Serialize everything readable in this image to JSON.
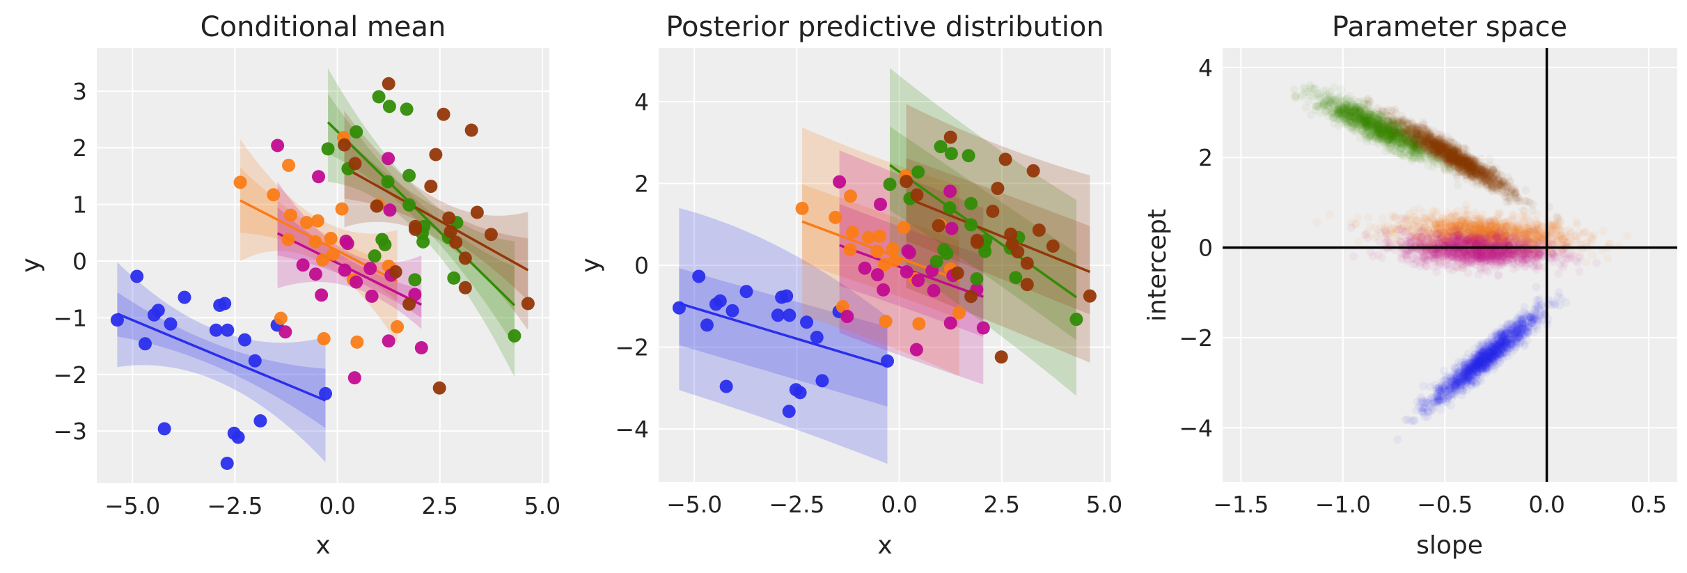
{
  "colors": {
    "blue": "#2a2eec",
    "orange": "#fa7c17",
    "magenta": "#c10c90",
    "green": "#328c06",
    "brown": "#933708",
    "background": "#eeeeee",
    "grid": "#ffffff"
  },
  "chart_data": [
    {
      "type": "line",
      "title": "Conditional mean",
      "xlabel": "x",
      "ylabel": "y",
      "xlim": [
        -5.87,
        5.17
      ],
      "ylim": [
        -3.92,
        3.76
      ],
      "grid": true,
      "xticks": [
        -5,
        -2.5,
        0,
        2.5,
        5
      ],
      "xtick_labels": [
        "−5.0",
        "−2.5",
        "0.0",
        "2.5",
        "5.0"
      ],
      "yticks": [
        -3,
        -2,
        -1,
        0,
        1,
        2,
        3
      ],
      "ytick_labels": [
        "−3",
        "−2",
        "−1",
        "0",
        "1",
        "2",
        "3"
      ],
      "series": [
        {
          "color": "blue",
          "line": {
            "x": [
              -5.37,
              -0.29
            ],
            "y": [
              -0.93,
              -2.46
            ]
          },
          "hdi_outer": {
            "x": [
              -5.37,
              -2.83,
              -0.29
            ],
            "lower": [
              -1.87,
              -2.15,
              -3.55
            ],
            "upper": [
              -0.02,
              -1.25,
              -1.34
            ]
          },
          "hdi_inner": {
            "x": [
              -5.37,
              -2.83,
              -0.29
            ],
            "lower": [
              -1.33,
              -1.9,
              -2.95
            ],
            "upper": [
              -0.55,
              -1.5,
              -1.9
            ]
          }
        },
        {
          "color": "orange",
          "line": {
            "x": [
              -2.37,
              1.46
            ],
            "y": [
              1.07,
              -0.36
            ]
          },
          "hdi_outer": {
            "x": [
              -2.37,
              -0.455,
              1.46
            ],
            "lower": [
              0.0,
              0.0,
              -1.45
            ],
            "upper": [
              2.15,
              0.75,
              0.55
            ]
          },
          "hdi_inner": {
            "x": [
              -2.37,
              -0.455,
              1.46
            ],
            "lower": [
              0.5,
              0.15,
              -0.7
            ],
            "upper": [
              1.65,
              0.55,
              -0.05
            ]
          }
        },
        {
          "color": "magenta",
          "line": {
            "x": [
              -1.46,
              2.05
            ],
            "y": [
              0.49,
              -0.77
            ]
          },
          "hdi_outer": {
            "x": [
              -1.46,
              0.295,
              2.05
            ],
            "lower": [
              -0.48,
              -0.45,
              -1.2
            ],
            "upper": [
              1.4,
              0.15,
              0.1
            ]
          },
          "hdi_inner": {
            "x": [
              -1.46,
              0.295,
              2.05
            ],
            "lower": [
              0.1,
              -0.3,
              -1.0
            ],
            "upper": [
              0.95,
              0.02,
              -0.5
            ]
          }
        },
        {
          "color": "green",
          "line": {
            "x": [
              -0.23,
              4.32
            ],
            "y": [
              2.45,
              -0.78
            ]
          },
          "hdi_outer": {
            "x": [
              -0.23,
              2.045,
              4.32
            ],
            "lower": [
              1.4,
              0.45,
              -2.05
            ],
            "upper": [
              3.4,
              1.2,
              0.35
            ]
          },
          "hdi_inner": {
            "x": [
              -0.23,
              2.045,
              4.32
            ],
            "lower": [
              1.9,
              0.65,
              -1.5
            ],
            "upper": [
              2.95,
              1.0,
              -0.1
            ]
          }
        },
        {
          "color": "brown",
          "line": {
            "x": [
              0.17,
              4.65
            ],
            "y": [
              1.65,
              -0.16
            ]
          },
          "hdi_outer": {
            "x": [
              0.17,
              2.41,
              4.65
            ],
            "lower": [
              0.6,
              0.4,
              -1.22
            ],
            "upper": [
              2.65,
              1.1,
              0.87
            ]
          },
          "hdi_inner": {
            "x": [
              0.17,
              2.41,
              4.65
            ],
            "lower": [
              1.1,
              0.55,
              -0.7
            ],
            "upper": [
              2.2,
              0.95,
              0.4
            ]
          }
        }
      ]
    },
    {
      "type": "line",
      "title": "Posterior predictive distribution",
      "xlabel": "x",
      "ylabel": "y",
      "xlim": [
        -5.87,
        5.17
      ],
      "ylim": [
        -5.29,
        5.31
      ],
      "grid": true,
      "xticks": [
        -5,
        -2.5,
        0,
        2.5,
        5
      ],
      "xtick_labels": [
        "−5.0",
        "−2.5",
        "0.0",
        "2.5",
        "5.0"
      ],
      "yticks": [
        -4,
        -2,
        0,
        2,
        4
      ],
      "ytick_labels": [
        "−4",
        "−2",
        "0",
        "2",
        "4"
      ],
      "series": [
        {
          "color": "blue",
          "line": {
            "x": [
              -5.37,
              -0.29
            ],
            "y": [
              -0.93,
              -2.46
            ]
          },
          "hdi_outer": {
            "x": [
              -5.37,
              -2.83,
              -0.29
            ],
            "lower": [
              -3.05,
              -3.9,
              -4.85
            ],
            "upper": [
              1.4,
              0.4,
              -1.26
            ]
          },
          "hdi_inner": {
            "x": [
              -5.37,
              -2.83,
              -0.29
            ],
            "lower": [
              -1.95,
              -2.7,
              -3.45
            ],
            "upper": [
              -0.07,
              -0.8,
              -1.5
            ]
          }
        },
        {
          "color": "orange",
          "line": {
            "x": [
              -2.37,
              1.46
            ],
            "y": [
              1.07,
              -0.36
            ]
          },
          "hdi_outer": {
            "x": [
              -2.37,
              -0.455,
              1.46
            ],
            "lower": [
              -1.23,
              -1.9,
              -2.7
            ],
            "upper": [
              3.37,
              2.6,
              1.95
            ]
          },
          "hdi_inner": {
            "x": [
              -2.37,
              -0.455,
              1.46
            ],
            "lower": [
              0.05,
              -0.6,
              -1.3
            ],
            "upper": [
              1.98,
              1.3,
              0.6
            ]
          }
        },
        {
          "color": "magenta",
          "line": {
            "x": [
              -1.46,
              2.05
            ],
            "y": [
              0.49,
              -0.77
            ]
          },
          "hdi_outer": {
            "x": [
              -1.46,
              0.295,
              2.05
            ],
            "lower": [
              -1.65,
              -2.3,
              -2.91
            ],
            "upper": [
              2.81,
              2.1,
              1.4
            ]
          },
          "hdi_inner": {
            "x": [
              -1.46,
              0.295,
              2.05
            ],
            "lower": [
              -0.5,
              -1.1,
              -1.75
            ],
            "upper": [
              1.5,
              0.85,
              0.25
            ]
          }
        },
        {
          "color": "green",
          "line": {
            "x": [
              -0.23,
              4.32
            ],
            "y": [
              2.45,
              -0.78
            ]
          },
          "hdi_outer": {
            "x": [
              -0.23,
              2.045,
              4.32
            ],
            "lower": [
              0.2,
              -1.4,
              -3.19
            ],
            "upper": [
              4.82,
              3.1,
              1.6
            ]
          },
          "hdi_inner": {
            "x": [
              -0.23,
              2.045,
              4.32
            ],
            "lower": [
              1.35,
              -0.2,
              -1.83
            ],
            "upper": [
              3.39,
              1.85,
              0.3
            ]
          }
        },
        {
          "color": "brown",
          "line": {
            "x": [
              0.17,
              4.65
            ],
            "y": [
              1.65,
              -0.16
            ]
          },
          "hdi_outer": {
            "x": [
              0.17,
              2.41,
              4.65
            ],
            "lower": [
              -0.55,
              -1.45,
              -2.38
            ],
            "upper": [
              3.94,
              2.95,
              2.2
            ]
          },
          "hdi_inner": {
            "x": [
              0.17,
              2.41,
              4.65
            ],
            "lower": [
              0.6,
              -0.3,
              -1.2
            ],
            "upper": [
              2.62,
              1.8,
              0.96
            ]
          }
        }
      ]
    },
    {
      "type": "scatter",
      "title": "Parameter space",
      "xlabel": "slope",
      "ylabel": "intercept",
      "xlim": [
        -1.59,
        0.64
      ],
      "ylim": [
        -5.2,
        4.43
      ],
      "grid": true,
      "reference_lines": {
        "x": 0,
        "y": 0,
        "color": "#000000"
      },
      "xticks": [
        -1.5,
        -1,
        -0.5,
        0,
        0.5
      ],
      "xtick_labels": [
        "−1.5",
        "−1.0",
        "−0.5",
        "0.0",
        "0.5"
      ],
      "yticks": [
        -4,
        -2,
        0,
        2,
        4
      ],
      "ytick_labels": [
        "−4",
        "−2",
        "0",
        "2",
        "4"
      ],
      "clusters": [
        {
          "color": "orange",
          "slope_mean": -0.3,
          "slope_sd": 0.22,
          "intercept_mean": 0.3,
          "intercept_sd": 0.2,
          "corr": -0.3
        },
        {
          "color": "magenta",
          "slope_mean": -0.35,
          "slope_sd": 0.18,
          "intercept_mean": -0.05,
          "intercept_sd": 0.18,
          "corr": -0.2
        },
        {
          "color": "green",
          "slope_mean": -0.82,
          "slope_sd": 0.15,
          "intercept_mean": 2.65,
          "intercept_sd": 0.35,
          "corr": -0.9
        },
        {
          "color": "brown",
          "slope_mean": -0.45,
          "slope_sd": 0.14,
          "intercept_mean": 2.0,
          "intercept_sd": 0.4,
          "corr": -0.95
        },
        {
          "color": "blue",
          "slope_mean": -0.3,
          "slope_sd": 0.13,
          "intercept_mean": -2.45,
          "intercept_sd": 0.5,
          "corr": 0.95
        }
      ]
    }
  ],
  "observations": {
    "blue": [
      [
        -5.37,
        -1.04
      ],
      [
        -4.89,
        -0.27
      ],
      [
        -4.69,
        -1.46
      ],
      [
        -4.47,
        -0.95
      ],
      [
        -4.37,
        -0.87
      ],
      [
        -4.22,
        -2.96
      ],
      [
        -4.07,
        -1.11
      ],
      [
        -3.73,
        -0.64
      ],
      [
        -2.96,
        -1.22
      ],
      [
        -2.87,
        -0.78
      ],
      [
        -2.75,
        -0.75
      ],
      [
        -2.68,
        -1.22
      ],
      [
        -2.69,
        -3.57
      ],
      [
        -2.52,
        -3.04
      ],
      [
        -2.42,
        -3.11
      ],
      [
        -2.26,
        -1.39
      ],
      [
        -2.01,
        -1.76
      ],
      [
        -1.88,
        -2.82
      ],
      [
        -1.47,
        -1.13
      ],
      [
        -0.29,
        -2.34
      ]
    ],
    "orange": [
      [
        -2.37,
        1.39
      ],
      [
        -1.56,
        1.17
      ],
      [
        -1.19,
        1.69
      ],
      [
        -1.14,
        0.81
      ],
      [
        -1.38,
        -1.01
      ],
      [
        -0.75,
        0.68
      ],
      [
        -0.48,
        0.71
      ],
      [
        -0.54,
        0.34
      ],
      [
        -0.33,
        -1.37
      ],
      [
        -0.16,
        0.4
      ],
      [
        -0.11,
        0.12
      ],
      [
        -0.36,
        0.02
      ],
      [
        0.11,
        0.92
      ],
      [
        0.15,
        2.18
      ],
      [
        0.39,
        -0.33
      ],
      [
        0.48,
        -1.43
      ],
      [
        1.0,
        0.99
      ],
      [
        1.25,
        -0.09
      ],
      [
        1.46,
        -1.16
      ],
      [
        -1.2,
        0.38
      ]
    ],
    "magenta": [
      [
        -1.46,
        2.04
      ],
      [
        -1.27,
        -1.25
      ],
      [
        -0.46,
        1.49
      ],
      [
        -0.84,
        -0.07
      ],
      [
        -0.53,
        -0.23
      ],
      [
        -0.39,
        -0.6
      ],
      [
        0.18,
        -0.16
      ],
      [
        0.21,
        0.35
      ],
      [
        0.46,
        -0.37
      ],
      [
        0.42,
        -2.06
      ],
      [
        0.8,
        -0.13
      ],
      [
        0.84,
        -0.62
      ],
      [
        1.24,
        1.81
      ],
      [
        1.28,
        0.9
      ],
      [
        1.25,
        -1.41
      ],
      [
        1.31,
        -0.25
      ],
      [
        1.89,
        -0.59
      ],
      [
        2.05,
        -1.53
      ],
      [
        0.25,
        0.31
      ]
    ],
    "green": [
      [
        -0.23,
        1.98
      ],
      [
        0.46,
        2.28
      ],
      [
        0.26,
        1.63
      ],
      [
        1.01,
        2.9
      ],
      [
        1.27,
        2.73
      ],
      [
        1.69,
        2.68
      ],
      [
        0.91,
        0.09
      ],
      [
        1.09,
        0.38
      ],
      [
        1.16,
        0.29
      ],
      [
        1.23,
        1.4
      ],
      [
        1.75,
        1.51
      ],
      [
        1.75,
        0.99
      ],
      [
        1.89,
        -0.33
      ],
      [
        2.11,
        0.61
      ],
      [
        2.09,
        0.34
      ],
      [
        2.07,
        0.49
      ],
      [
        2.91,
        0.68
      ],
      [
        2.84,
        -0.3
      ],
      [
        2.71,
        0.42
      ],
      [
        4.32,
        -1.32
      ]
    ],
    "brown": [
      [
        1.25,
        3.13
      ],
      [
        0.17,
        2.05
      ],
      [
        0.43,
        1.72
      ],
      [
        0.96,
        0.97
      ],
      [
        2.59,
        2.59
      ],
      [
        3.27,
        2.31
      ],
      [
        2.4,
        1.88
      ],
      [
        2.28,
        1.32
      ],
      [
        1.9,
        0.61
      ],
      [
        1.9,
        0.56
      ],
      [
        2.72,
        0.76
      ],
      [
        2.76,
        0.52
      ],
      [
        2.89,
        0.33
      ],
      [
        3.12,
        0.05
      ],
      [
        3.12,
        -0.47
      ],
      [
        3.41,
        0.86
      ],
      [
        3.75,
        0.47
      ],
      [
        1.75,
        -0.76
      ],
      [
        1.42,
        -0.19
      ],
      [
        2.49,
        -2.24
      ],
      [
        4.65,
        -0.75
      ]
    ]
  }
}
